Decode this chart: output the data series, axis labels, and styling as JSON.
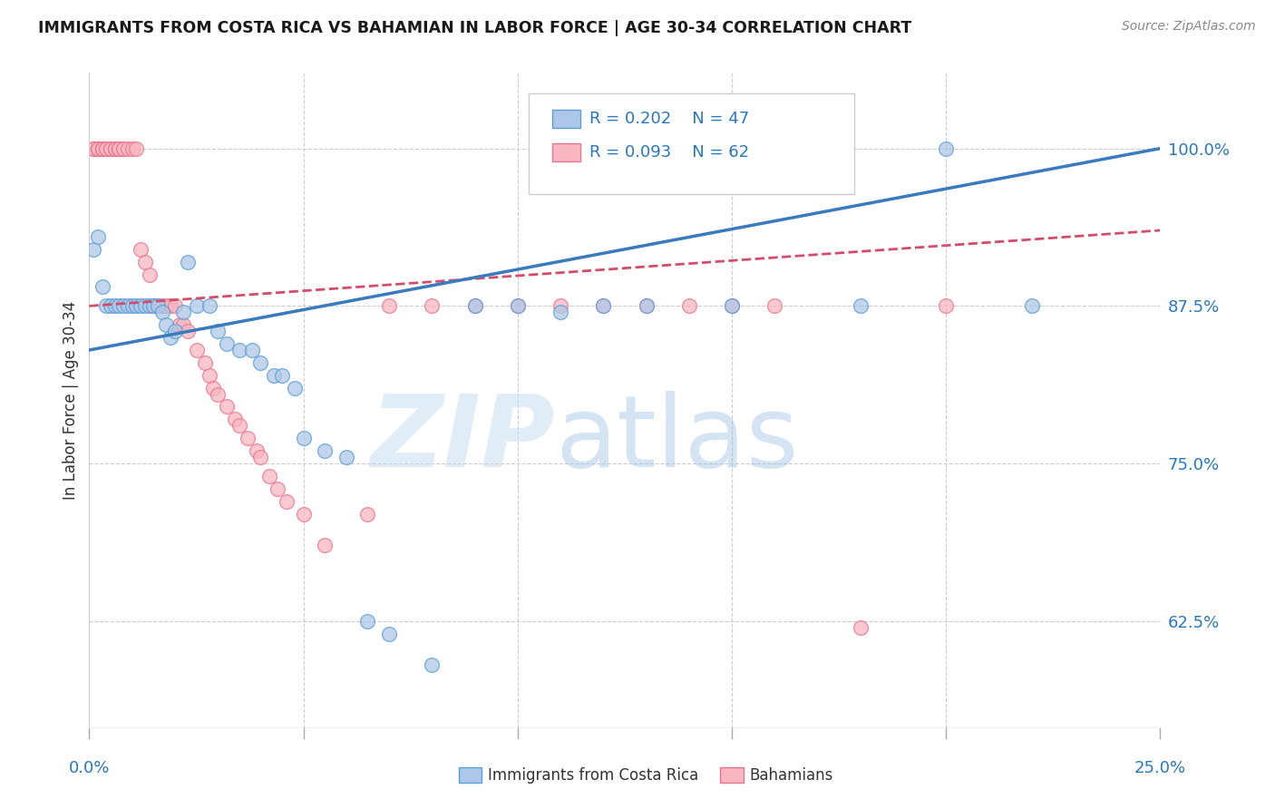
{
  "title": "IMMIGRANTS FROM COSTA RICA VS BAHAMIAN IN LABOR FORCE | AGE 30-34 CORRELATION CHART",
  "source": "Source: ZipAtlas.com",
  "ylabel": "In Labor Force | Age 30-34",
  "yticks": [
    0.625,
    0.75,
    0.875,
    1.0
  ],
  "ytick_labels": [
    "62.5%",
    "75.0%",
    "87.5%",
    "100.0%"
  ],
  "xlim": [
    0.0,
    0.25
  ],
  "ylim": [
    0.54,
    1.06
  ],
  "blue_color": "#aec7e8",
  "blue_edge_color": "#5a9fd4",
  "pink_color": "#f7b6c2",
  "pink_edge_color": "#e8768a",
  "blue_line_color": "#3a7abf",
  "pink_line_color": "#d44c6a",
  "watermark_zip_color": "#c5dff0",
  "watermark_atlas_color": "#9ec9e2",
  "blue_scatter": [
    [
      0.001,
      0.92
    ],
    [
      0.002,
      0.93
    ],
    [
      0.003,
      0.89
    ],
    [
      0.004,
      0.875
    ],
    [
      0.005,
      0.875
    ],
    [
      0.006,
      0.875
    ],
    [
      0.007,
      0.875
    ],
    [
      0.008,
      0.875
    ],
    [
      0.009,
      0.875
    ],
    [
      0.01,
      0.875
    ],
    [
      0.011,
      0.875
    ],
    [
      0.012,
      0.875
    ],
    [
      0.013,
      0.875
    ],
    [
      0.014,
      0.875
    ],
    [
      0.015,
      0.875
    ],
    [
      0.016,
      0.875
    ],
    [
      0.017,
      0.87
    ],
    [
      0.018,
      0.86
    ],
    [
      0.019,
      0.85
    ],
    [
      0.02,
      0.855
    ],
    [
      0.022,
      0.87
    ],
    [
      0.023,
      0.91
    ],
    [
      0.025,
      0.875
    ],
    [
      0.028,
      0.875
    ],
    [
      0.03,
      0.855
    ],
    [
      0.032,
      0.845
    ],
    [
      0.035,
      0.84
    ],
    [
      0.038,
      0.84
    ],
    [
      0.04,
      0.83
    ],
    [
      0.043,
      0.82
    ],
    [
      0.045,
      0.82
    ],
    [
      0.048,
      0.81
    ],
    [
      0.05,
      0.77
    ],
    [
      0.055,
      0.76
    ],
    [
      0.06,
      0.755
    ],
    [
      0.065,
      0.625
    ],
    [
      0.07,
      0.615
    ],
    [
      0.08,
      0.59
    ],
    [
      0.09,
      0.875
    ],
    [
      0.1,
      0.875
    ],
    [
      0.11,
      0.87
    ],
    [
      0.12,
      0.875
    ],
    [
      0.13,
      0.875
    ],
    [
      0.15,
      0.875
    ],
    [
      0.18,
      0.875
    ],
    [
      0.2,
      1.0
    ],
    [
      0.22,
      0.875
    ]
  ],
  "pink_scatter": [
    [
      0.001,
      1.0
    ],
    [
      0.001,
      1.0
    ],
    [
      0.002,
      1.0
    ],
    [
      0.002,
      1.0
    ],
    [
      0.002,
      1.0
    ],
    [
      0.003,
      1.0
    ],
    [
      0.003,
      1.0
    ],
    [
      0.003,
      1.0
    ],
    [
      0.004,
      1.0
    ],
    [
      0.004,
      1.0
    ],
    [
      0.005,
      1.0
    ],
    [
      0.005,
      1.0
    ],
    [
      0.006,
      1.0
    ],
    [
      0.006,
      1.0
    ],
    [
      0.007,
      1.0
    ],
    [
      0.007,
      1.0
    ],
    [
      0.008,
      1.0
    ],
    [
      0.008,
      1.0
    ],
    [
      0.009,
      1.0
    ],
    [
      0.01,
      1.0
    ],
    [
      0.011,
      1.0
    ],
    [
      0.012,
      0.92
    ],
    [
      0.013,
      0.91
    ],
    [
      0.014,
      0.9
    ],
    [
      0.015,
      0.875
    ],
    [
      0.016,
      0.875
    ],
    [
      0.017,
      0.875
    ],
    [
      0.018,
      0.875
    ],
    [
      0.019,
      0.875
    ],
    [
      0.02,
      0.875
    ],
    [
      0.021,
      0.86
    ],
    [
      0.022,
      0.86
    ],
    [
      0.023,
      0.855
    ],
    [
      0.025,
      0.84
    ],
    [
      0.027,
      0.83
    ],
    [
      0.028,
      0.82
    ],
    [
      0.029,
      0.81
    ],
    [
      0.03,
      0.805
    ],
    [
      0.032,
      0.795
    ],
    [
      0.034,
      0.785
    ],
    [
      0.035,
      0.78
    ],
    [
      0.037,
      0.77
    ],
    [
      0.039,
      0.76
    ],
    [
      0.04,
      0.755
    ],
    [
      0.042,
      0.74
    ],
    [
      0.044,
      0.73
    ],
    [
      0.046,
      0.72
    ],
    [
      0.05,
      0.71
    ],
    [
      0.055,
      0.685
    ],
    [
      0.065,
      0.71
    ],
    [
      0.07,
      0.875
    ],
    [
      0.08,
      0.875
    ],
    [
      0.09,
      0.875
    ],
    [
      0.1,
      0.875
    ],
    [
      0.11,
      0.875
    ],
    [
      0.12,
      0.875
    ],
    [
      0.13,
      0.875
    ],
    [
      0.14,
      0.875
    ],
    [
      0.15,
      0.875
    ],
    [
      0.16,
      0.875
    ],
    [
      0.18,
      0.62
    ],
    [
      0.2,
      0.875
    ]
  ]
}
